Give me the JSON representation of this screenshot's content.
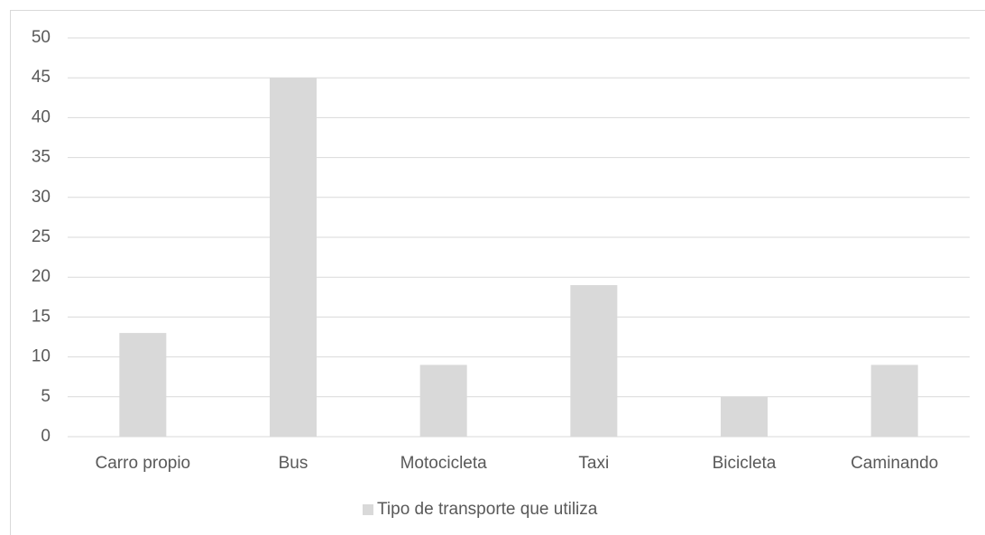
{
  "chart_data": {
    "type": "bar",
    "categories": [
      "Carro propio",
      "Bus",
      "Motocicleta",
      "Taxi",
      "Bicicleta",
      "Caminando"
    ],
    "series": [
      {
        "name": "Tipo de transporte que utiliza",
        "color": "#d9d9d9",
        "values": [
          13,
          45,
          9,
          19,
          5,
          9
        ]
      }
    ],
    "ylim": [
      0,
      50
    ],
    "yticks": [
      0,
      5,
      10,
      15,
      20,
      25,
      30,
      35,
      40,
      45,
      50
    ],
    "grid": true,
    "legend": "bottom"
  }
}
